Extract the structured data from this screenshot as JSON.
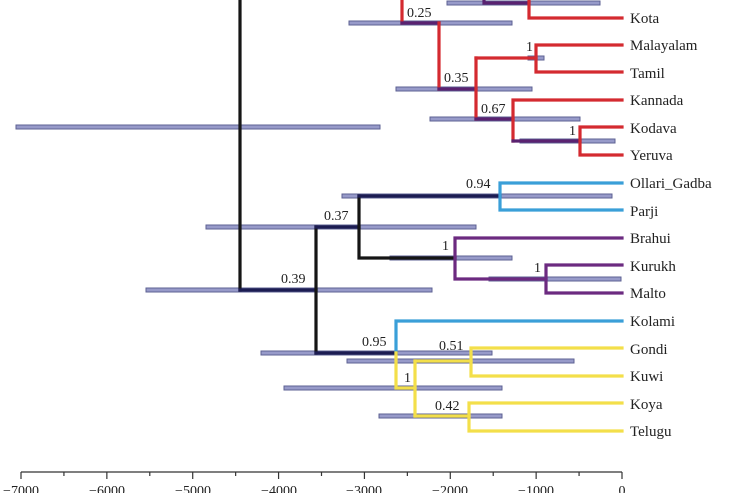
{
  "tips": [
    "Kota",
    "Malayalam",
    "Tamil",
    "Kannada",
    "Kodava",
    "Yeruva",
    "Ollari_Gadba",
    "Parji",
    "Brahui",
    "Kurukh",
    "Malto",
    "Kolami",
    "Gondi",
    "Kuwi",
    "Koya",
    "Telugu"
  ],
  "supports": {
    "kota_node": "0.25",
    "south_core": "0.35",
    "malayalam_tamil": "1",
    "kannada_group": "0.67",
    "kodava_yeruva": "1",
    "ollari_parji": "0.94",
    "central_north": "0.37",
    "north": "1",
    "kurukh_malto": "1",
    "lower_root": "0.39",
    "kolami_group": "0.95",
    "gondi_kuwi": "0.51",
    "south_central": "1",
    "koya_telugu": "0.42"
  },
  "axis": {
    "ticks": [
      "−7000",
      "−6000",
      "−5000",
      "−4000",
      "−3000",
      "−2000",
      "−1000",
      "0"
    ]
  },
  "colors": {
    "south": "#d42a30",
    "central_blue": "#3a9fd8",
    "north": "#6c2a80",
    "south_central": "#f3df4a",
    "backbone": "#151515",
    "hpd_bar": "#8c90c4"
  }
}
